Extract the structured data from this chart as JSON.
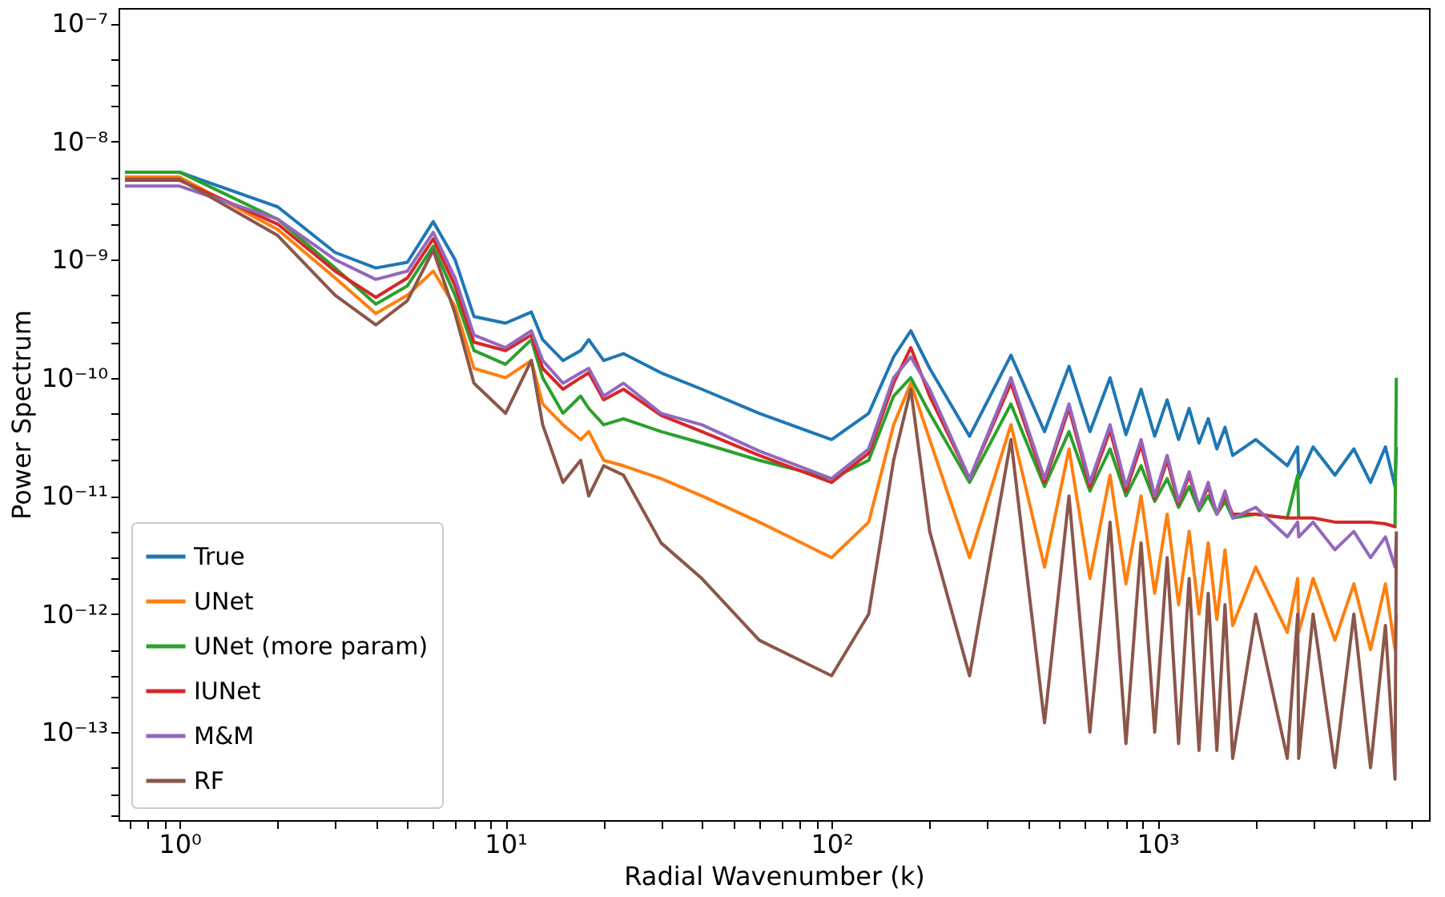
{
  "chart_data": {
    "type": "line",
    "xlabel": "Radial Wavenumber (k)",
    "ylabel": "Power Spectrum",
    "log": "xy",
    "grid": false,
    "legend": "bottom left",
    "line_style": "solid",
    "marker": "none",
    "xlim": [
      0.65,
      6800
    ],
    "ylim": [
      1.8e-14,
      1.35e-07
    ],
    "xticks": [
      {
        "value": 0.7,
        "label": null
      },
      {
        "value": 0.8,
        "label": null
      },
      {
        "value": 0.9,
        "label": null
      },
      {
        "value": 1,
        "label": "10⁰"
      },
      {
        "value": 2,
        "label": null
      },
      {
        "value": 3,
        "label": null
      },
      {
        "value": 4,
        "label": null
      },
      {
        "value": 5,
        "label": null
      },
      {
        "value": 6,
        "label": null
      },
      {
        "value": 7,
        "label": null
      },
      {
        "value": 8,
        "label": null
      },
      {
        "value": 9,
        "label": null
      },
      {
        "value": 10,
        "label": "10¹"
      },
      {
        "value": 20,
        "label": null
      },
      {
        "value": 30,
        "label": null
      },
      {
        "value": 40,
        "label": null
      },
      {
        "value": 50,
        "label": null
      },
      {
        "value": 60,
        "label": null
      },
      {
        "value": 70,
        "label": null
      },
      {
        "value": 80,
        "label": null
      },
      {
        "value": 90,
        "label": null
      },
      {
        "value": 100,
        "label": "10²"
      },
      {
        "value": 200,
        "label": null
      },
      {
        "value": 300,
        "label": null
      },
      {
        "value": 400,
        "label": null
      },
      {
        "value": 500,
        "label": null
      },
      {
        "value": 600,
        "label": null
      },
      {
        "value": 700,
        "label": null
      },
      {
        "value": 800,
        "label": null
      },
      {
        "value": 900,
        "label": null
      },
      {
        "value": 1000,
        "label": "10³"
      },
      {
        "value": 2000,
        "label": null
      },
      {
        "value": 3000,
        "label": null
      },
      {
        "value": 4000,
        "label": null
      },
      {
        "value": 5000,
        "label": null
      },
      {
        "value": 6000,
        "label": null
      }
    ],
    "yticks": [
      {
        "value": 1e-13,
        "label": "10⁻¹³"
      },
      {
        "value": 1e-12,
        "label": "10⁻¹²"
      },
      {
        "value": 1e-11,
        "label": "10⁻¹¹"
      },
      {
        "value": 1e-10,
        "label": "10⁻¹⁰"
      },
      {
        "value": 1e-09,
        "label": "10⁻⁹"
      },
      {
        "value": 1e-08,
        "label": "10⁻⁸"
      },
      {
        "value": 1e-07,
        "label": "10⁻⁷"
      },
      {
        "value": 2e-14,
        "label": null
      },
      {
        "value": 3e-14,
        "label": null
      },
      {
        "value": 5e-14,
        "label": null
      },
      {
        "value": 2e-13,
        "label": null
      },
      {
        "value": 3e-13,
        "label": null
      },
      {
        "value": 5e-13,
        "label": null
      },
      {
        "value": 2e-12,
        "label": null
      },
      {
        "value": 3e-12,
        "label": null
      },
      {
        "value": 5e-12,
        "label": null
      },
      {
        "value": 2e-11,
        "label": null
      },
      {
        "value": 3e-11,
        "label": null
      },
      {
        "value": 5e-11,
        "label": null
      },
      {
        "value": 2e-10,
        "label": null
      },
      {
        "value": 3e-10,
        "label": null
      },
      {
        "value": 5e-10,
        "label": null
      },
      {
        "value": 2e-09,
        "label": null
      },
      {
        "value": 3e-09,
        "label": null
      },
      {
        "value": 5e-09,
        "label": null
      },
      {
        "value": 2e-08,
        "label": null
      },
      {
        "value": 3e-08,
        "label": null
      },
      {
        "value": 5e-08,
        "label": null
      }
    ],
    "x": [
      0.68,
      1,
      2,
      3,
      4,
      5,
      6,
      7,
      8,
      10,
      12,
      13,
      15,
      17,
      18,
      20,
      23,
      30,
      40,
      60,
      100,
      130,
      155,
      175,
      200,
      265,
      355,
      450,
      535,
      620,
      715,
      800,
      890,
      980,
      1070,
      1160,
      1250,
      1340,
      1430,
      1520,
      1610,
      1700,
      2000,
      2500,
      2690,
      2710,
      3000,
      3500,
      4000,
      4500,
      5000,
      5350,
      5400
    ],
    "series": [
      {
        "name": "True",
        "color": "#1f77b4",
        "values": [
          5.5e-09,
          5.5e-09,
          2.8e-09,
          1.15e-09,
          8.5e-10,
          9.5e-10,
          2.1e-09,
          1e-09,
          3.3e-10,
          2.9e-10,
          3.6e-10,
          2.1e-10,
          1.4e-10,
          1.7e-10,
          2.1e-10,
          1.4e-10,
          1.6e-10,
          1.1e-10,
          8e-11,
          5e-11,
          3e-11,
          5e-11,
          1.5e-10,
          2.5e-10,
          1.2e-10,
          3.2e-11,
          1.55e-10,
          3.5e-11,
          1.25e-10,
          3.5e-11,
          1e-10,
          3.3e-11,
          8e-11,
          3.2e-11,
          6.5e-11,
          3e-11,
          5.5e-11,
          2.8e-11,
          4.5e-11,
          2.5e-11,
          3.8e-11,
          2.2e-11,
          3e-11,
          1.8e-11,
          2.6e-11,
          1.4e-11,
          2.6e-11,
          1.5e-11,
          2.5e-11,
          1.3e-11,
          2.6e-11,
          1.2e-11,
          2.6e-11
        ]
      },
      {
        "name": "UNet",
        "color": "#ff7f0e",
        "values": [
          5e-09,
          5e-09,
          1.8e-09,
          7e-10,
          3.5e-10,
          5e-10,
          8e-10,
          4e-10,
          1.2e-10,
          1e-10,
          1.4e-10,
          6e-11,
          4e-11,
          3e-11,
          3.5e-11,
          2e-11,
          1.8e-11,
          1.4e-11,
          1e-11,
          6e-12,
          3e-12,
          6e-12,
          4e-11,
          9e-11,
          3e-11,
          3e-12,
          4e-11,
          2.5e-12,
          2.5e-11,
          2e-12,
          1.5e-11,
          1.8e-12,
          1e-11,
          1.5e-12,
          7e-12,
          1.2e-12,
          5e-12,
          1e-12,
          4e-12,
          9e-13,
          3.5e-12,
          8e-13,
          2.5e-12,
          7e-13,
          2e-12,
          7e-13,
          2e-12,
          6e-13,
          1.8e-12,
          5e-13,
          1.8e-12,
          5e-13,
          1e-12
        ]
      },
      {
        "name": "UNet (more param)",
        "color": "#2ca02c",
        "values": [
          5.5e-09,
          5.5e-09,
          2.2e-09,
          8.5e-10,
          4.2e-10,
          6e-10,
          1.3e-09,
          5e-10,
          1.7e-10,
          1.3e-10,
          2.1e-10,
          1e-10,
          5e-11,
          7e-11,
          5.5e-11,
          4e-11,
          4.5e-11,
          3.5e-11,
          2.8e-11,
          2e-11,
          1.4e-11,
          2e-11,
          7e-11,
          1e-10,
          5e-11,
          1.3e-11,
          6e-11,
          1.2e-11,
          3.5e-11,
          1.1e-11,
          2.5e-11,
          1e-11,
          1.8e-11,
          9e-12,
          1.4e-11,
          8e-12,
          1.2e-11,
          7.5e-12,
          1e-11,
          7e-12,
          9e-12,
          6.5e-12,
          7e-12,
          6.5e-12,
          1.5e-11,
          6.5e-12,
          null,
          null,
          null,
          null,
          5.8e-12,
          5.5e-12,
          1e-10
        ]
      },
      {
        "name": "IUNet",
        "color": "#d62728",
        "values": [
          4.7e-09,
          4.7e-09,
          2e-09,
          8e-10,
          4.8e-10,
          7e-10,
          1.5e-09,
          6e-10,
          2e-10,
          1.7e-10,
          2.3e-10,
          1.2e-10,
          8e-11,
          1e-10,
          1.1e-10,
          6.5e-11,
          8e-11,
          4.8e-11,
          3.5e-11,
          2.2e-11,
          1.3e-11,
          2.3e-11,
          9e-11,
          1.8e-10,
          7e-11,
          1.4e-11,
          9e-11,
          1.3e-11,
          5.5e-11,
          1.2e-11,
          3.6e-11,
          1.1e-11,
          2.7e-11,
          9.5e-12,
          2e-11,
          8.5e-12,
          1.5e-11,
          8e-12,
          1.2e-11,
          7e-12,
          1e-11,
          7e-12,
          7e-12,
          6.5e-12,
          6.5e-12,
          6.5e-12,
          6.5e-12,
          6e-12,
          6e-12,
          6e-12,
          5.8e-12,
          5.5e-12,
          5.5e-12
        ]
      },
      {
        "name": "M&M",
        "color": "#9467bd",
        "values": [
          4.2e-09,
          4.2e-09,
          2.2e-09,
          1e-09,
          6.8e-10,
          8e-10,
          1.7e-09,
          7e-10,
          2.3e-10,
          1.8e-10,
          2.5e-10,
          1.4e-10,
          9e-11,
          1.1e-10,
          1.2e-10,
          7e-11,
          9e-11,
          5e-11,
          4e-11,
          2.4e-11,
          1.4e-11,
          2.5e-11,
          1e-10,
          1.5e-10,
          8e-11,
          1.4e-11,
          1e-10,
          1.4e-11,
          6e-11,
          1.3e-11,
          4e-11,
          1.2e-11,
          3e-11,
          1e-11,
          2.2e-11,
          9e-12,
          1.6e-11,
          8e-12,
          1.3e-11,
          7e-12,
          1.1e-11,
          6.5e-12,
          8e-12,
          4.5e-12,
          6e-12,
          4.5e-12,
          6e-12,
          3.5e-12,
          5e-12,
          3e-12,
          4.5e-12,
          2.5e-12,
          4.5e-12
        ]
      },
      {
        "name": "RF",
        "color": "#8c564b",
        "values": [
          4.8e-09,
          4.8e-09,
          1.6e-09,
          5e-10,
          2.8e-10,
          4.5e-10,
          1.2e-09,
          3.5e-10,
          9e-11,
          5e-11,
          1.4e-10,
          4e-11,
          1.3e-11,
          2e-11,
          1e-11,
          1.8e-11,
          1.5e-11,
          4e-12,
          2e-12,
          6e-13,
          3e-13,
          1e-12,
          2e-11,
          8e-11,
          5e-12,
          3e-13,
          3e-11,
          1.2e-13,
          1e-11,
          1e-13,
          6e-12,
          8e-14,
          4e-12,
          1e-13,
          3e-12,
          8e-14,
          2e-12,
          7e-14,
          1.5e-12,
          7e-14,
          1.2e-12,
          6e-14,
          1e-12,
          6e-14,
          1e-12,
          6e-14,
          1e-12,
          5e-14,
          1e-12,
          5e-14,
          8e-13,
          4e-14,
          5e-12
        ]
      }
    ]
  }
}
